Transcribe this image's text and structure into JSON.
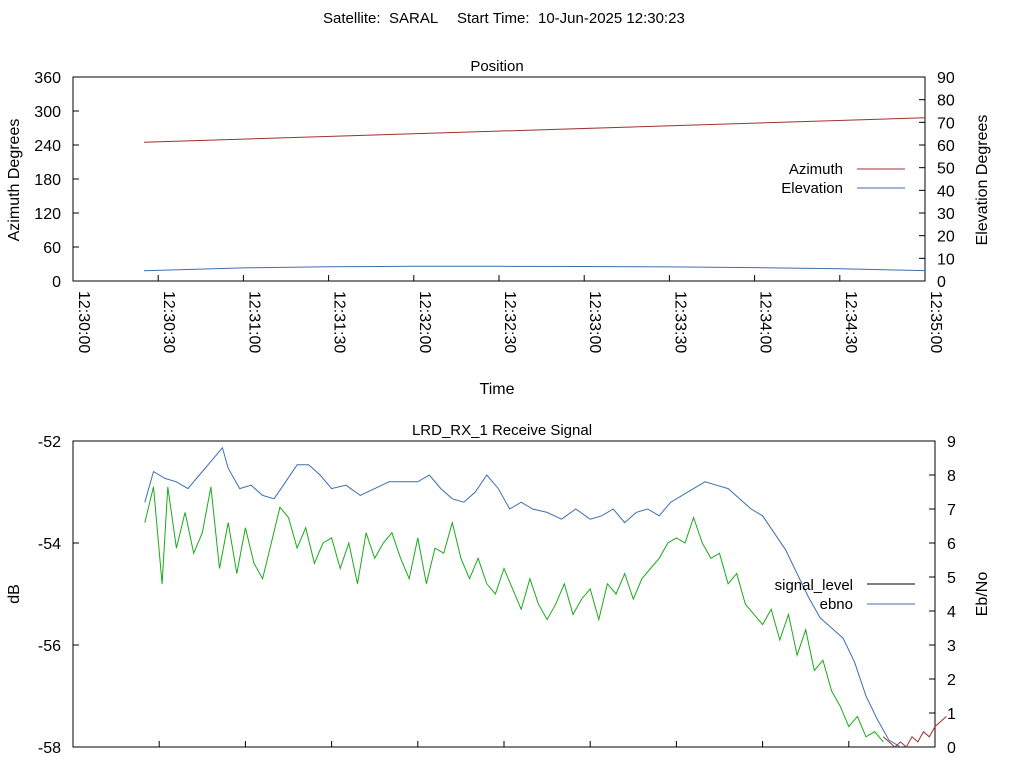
{
  "header": {
    "satellite_label": "Satellite:",
    "satellite": "SARAL",
    "start_label": "Start Time:",
    "start_time": "10-Jun-2025 12:30:23"
  },
  "colors": {
    "azimuth": "#a03030",
    "elevation": "#3c6fb0",
    "signal_level": "#000000",
    "ebno": "#3c6fb0",
    "green_trace": "#1aaa1a",
    "red_trace": "#a03030"
  },
  "chart_data": [
    {
      "type": "line",
      "title": "Position",
      "xlabel": "Time",
      "ylabel": "Azimuth Degrees",
      "y2label": "Elevation Degrees",
      "xlim": [
        "12:30:00",
        "12:35:00"
      ],
      "x_ticks": [
        "12:30:00",
        "12:30:30",
        "12:31:00",
        "12:31:30",
        "12:32:00",
        "12:32:30",
        "12:33:00",
        "12:33:30",
        "12:34:00",
        "12:34:30",
        "12:35:00"
      ],
      "ylim": [
        0,
        360
      ],
      "y_ticks": [
        0,
        60,
        120,
        180,
        240,
        300,
        360
      ],
      "y2lim": [
        0,
        90
      ],
      "y2_ticks": [
        0,
        10,
        20,
        30,
        40,
        50,
        60,
        70,
        80,
        90
      ],
      "legend_position": "right",
      "grid": false,
      "series": [
        {
          "name": "Azimuth",
          "axis": "left",
          "x": [
            "12:30:25",
            "12:35:00"
          ],
          "y": [
            245,
            288
          ]
        },
        {
          "name": "Elevation",
          "axis": "right",
          "x": [
            "12:30:25",
            "12:31:00",
            "12:31:30",
            "12:32:00",
            "12:32:30",
            "12:33:00",
            "12:33:30",
            "12:34:00",
            "12:34:30",
            "12:35:00"
          ],
          "y": [
            4.5,
            5.8,
            6.3,
            6.5,
            6.5,
            6.4,
            6.2,
            5.9,
            5.4,
            4.6
          ]
        }
      ]
    },
    {
      "type": "line",
      "title": "LRD_RX_1 Receive Signal",
      "ylabel": "dB",
      "y2label": "Eb/No",
      "xlim": [
        "12:30:00",
        "12:35:00"
      ],
      "ylim": [
        -58,
        -52
      ],
      "y_ticks": [
        -52,
        -54,
        -56,
        -58
      ],
      "y2lim": [
        0,
        9
      ],
      "y2_ticks": [
        0,
        1,
        2,
        3,
        4,
        5,
        6,
        7,
        8,
        9
      ],
      "legend_position": "right",
      "grid": false,
      "series": [
        {
          "name": "signal_level",
          "axis": "left",
          "x": [],
          "y": []
        },
        {
          "name": "ebno",
          "axis": "right",
          "x": [
            "12:30:25",
            "12:30:28",
            "12:30:32",
            "12:30:36",
            "12:30:40",
            "12:30:44",
            "12:30:48",
            "12:30:52",
            "12:30:54",
            "12:30:58",
            "12:31:02",
            "12:31:06",
            "12:31:10",
            "12:31:14",
            "12:31:18",
            "12:31:22",
            "12:31:26",
            "12:31:30",
            "12:31:35",
            "12:31:40",
            "12:31:45",
            "12:31:50",
            "12:31:55",
            "12:32:00",
            "12:32:04",
            "12:32:08",
            "12:32:12",
            "12:32:16",
            "12:32:20",
            "12:32:24",
            "12:32:28",
            "12:32:32",
            "12:32:36",
            "12:32:40",
            "12:32:45",
            "12:32:50",
            "12:32:55",
            "12:33:00",
            "12:33:04",
            "12:33:08",
            "12:33:12",
            "12:33:16",
            "12:33:20",
            "12:33:24",
            "12:33:28",
            "12:33:32",
            "12:33:36",
            "12:33:40",
            "12:33:44",
            "12:33:48",
            "12:33:52",
            "12:33:56",
            "12:34:00",
            "12:34:04",
            "12:34:08",
            "12:34:12",
            "12:34:16",
            "12:34:20",
            "12:34:24",
            "12:34:28",
            "12:34:32",
            "12:34:36",
            "12:34:40",
            "12:34:44",
            "12:34:48"
          ],
          "y": [
            7.2,
            8.1,
            7.9,
            7.8,
            7.6,
            8.0,
            8.4,
            8.8,
            8.2,
            7.6,
            7.7,
            7.4,
            7.3,
            7.8,
            8.3,
            8.3,
            8.0,
            7.6,
            7.7,
            7.4,
            7.6,
            7.8,
            7.8,
            7.8,
            8.0,
            7.6,
            7.3,
            7.2,
            7.5,
            8.0,
            7.6,
            7.0,
            7.2,
            7.0,
            6.9,
            6.7,
            7.0,
            6.7,
            6.8,
            7.0,
            6.6,
            6.9,
            7.0,
            6.8,
            7.2,
            7.4,
            7.6,
            7.8,
            7.7,
            7.6,
            7.3,
            7.0,
            6.8,
            6.3,
            5.8,
            5.1,
            4.4,
            3.8,
            3.5,
            3.2,
            2.5,
            1.5,
            0.8,
            0.2,
            0.0
          ]
        },
        {
          "name": "",
          "axis": "left",
          "x": [
            "12:30:25",
            "12:30:28",
            "12:30:31",
            "12:30:33",
            "12:30:36",
            "12:30:39",
            "12:30:42",
            "12:30:45",
            "12:30:48",
            "12:30:51",
            "12:30:54",
            "12:30:57",
            "12:31:00",
            "12:31:03",
            "12:31:06",
            "12:31:09",
            "12:31:12",
            "12:31:15",
            "12:31:18",
            "12:31:21",
            "12:31:24",
            "12:31:27",
            "12:31:30",
            "12:31:33",
            "12:31:36",
            "12:31:39",
            "12:31:42",
            "12:31:45",
            "12:31:48",
            "12:31:51",
            "12:31:54",
            "12:31:57",
            "12:32:00",
            "12:32:03",
            "12:32:06",
            "12:32:09",
            "12:32:12",
            "12:32:15",
            "12:32:18",
            "12:32:21",
            "12:32:24",
            "12:32:27",
            "12:32:30",
            "12:32:33",
            "12:32:36",
            "12:32:39",
            "12:32:42",
            "12:32:45",
            "12:32:48",
            "12:32:51",
            "12:32:54",
            "12:32:57",
            "12:33:00",
            "12:33:03",
            "12:33:06",
            "12:33:09",
            "12:33:12",
            "12:33:15",
            "12:33:18",
            "12:33:21",
            "12:33:24",
            "12:33:27",
            "12:33:30",
            "12:33:33",
            "12:33:36",
            "12:33:39",
            "12:33:42",
            "12:33:45",
            "12:33:48",
            "12:33:51",
            "12:33:54",
            "12:33:57",
            "12:34:00",
            "12:34:03",
            "12:34:06",
            "12:34:09",
            "12:34:12",
            "12:34:15",
            "12:34:18",
            "12:34:21",
            "12:34:24",
            "12:34:27",
            "12:34:30",
            "12:34:33",
            "12:34:36",
            "12:34:39",
            "12:34:42"
          ],
          "y": [
            -53.6,
            -52.9,
            -54.8,
            -52.9,
            -54.1,
            -53.4,
            -54.2,
            -53.8,
            -52.9,
            -54.5,
            -53.6,
            -54.6,
            -53.7,
            -54.4,
            -54.7,
            -54.0,
            -53.3,
            -53.5,
            -54.1,
            -53.7,
            -54.4,
            -54.0,
            -53.9,
            -54.5,
            -54.0,
            -54.8,
            -53.8,
            -54.3,
            -54.0,
            -53.8,
            -54.3,
            -54.7,
            -53.9,
            -54.8,
            -54.1,
            -54.2,
            -53.6,
            -54.3,
            -54.7,
            -54.3,
            -54.8,
            -55.0,
            -54.5,
            -54.9,
            -55.3,
            -54.7,
            -55.2,
            -55.5,
            -55.2,
            -54.8,
            -55.4,
            -55.1,
            -54.9,
            -55.5,
            -54.8,
            -55.0,
            -54.6,
            -55.1,
            -54.7,
            -54.5,
            -54.3,
            -54.0,
            -53.9,
            -54.0,
            -53.5,
            -54.0,
            -54.3,
            -54.2,
            -54.8,
            -54.6,
            -55.2,
            -55.4,
            -55.6,
            -55.3,
            -55.9,
            -55.4,
            -56.2,
            -55.7,
            -56.5,
            -56.3,
            -56.9,
            -57.2,
            -57.6,
            -57.4,
            -57.8,
            -57.7,
            -57.9
          ]
        },
        {
          "name": "",
          "axis": "left",
          "x": [
            "12:34:42",
            "12:34:44",
            "12:34:46",
            "12:34:48",
            "12:34:50",
            "12:34:52",
            "12:34:54",
            "12:34:56",
            "12:34:58",
            "12:35:00",
            "12:35:02",
            "12:35:04"
          ],
          "y": [
            -57.8,
            -57.9,
            -58.0,
            -57.9,
            -58.0,
            -57.8,
            -57.9,
            -57.7,
            -57.8,
            -57.6,
            -57.5,
            -57.4
          ]
        }
      ]
    }
  ]
}
